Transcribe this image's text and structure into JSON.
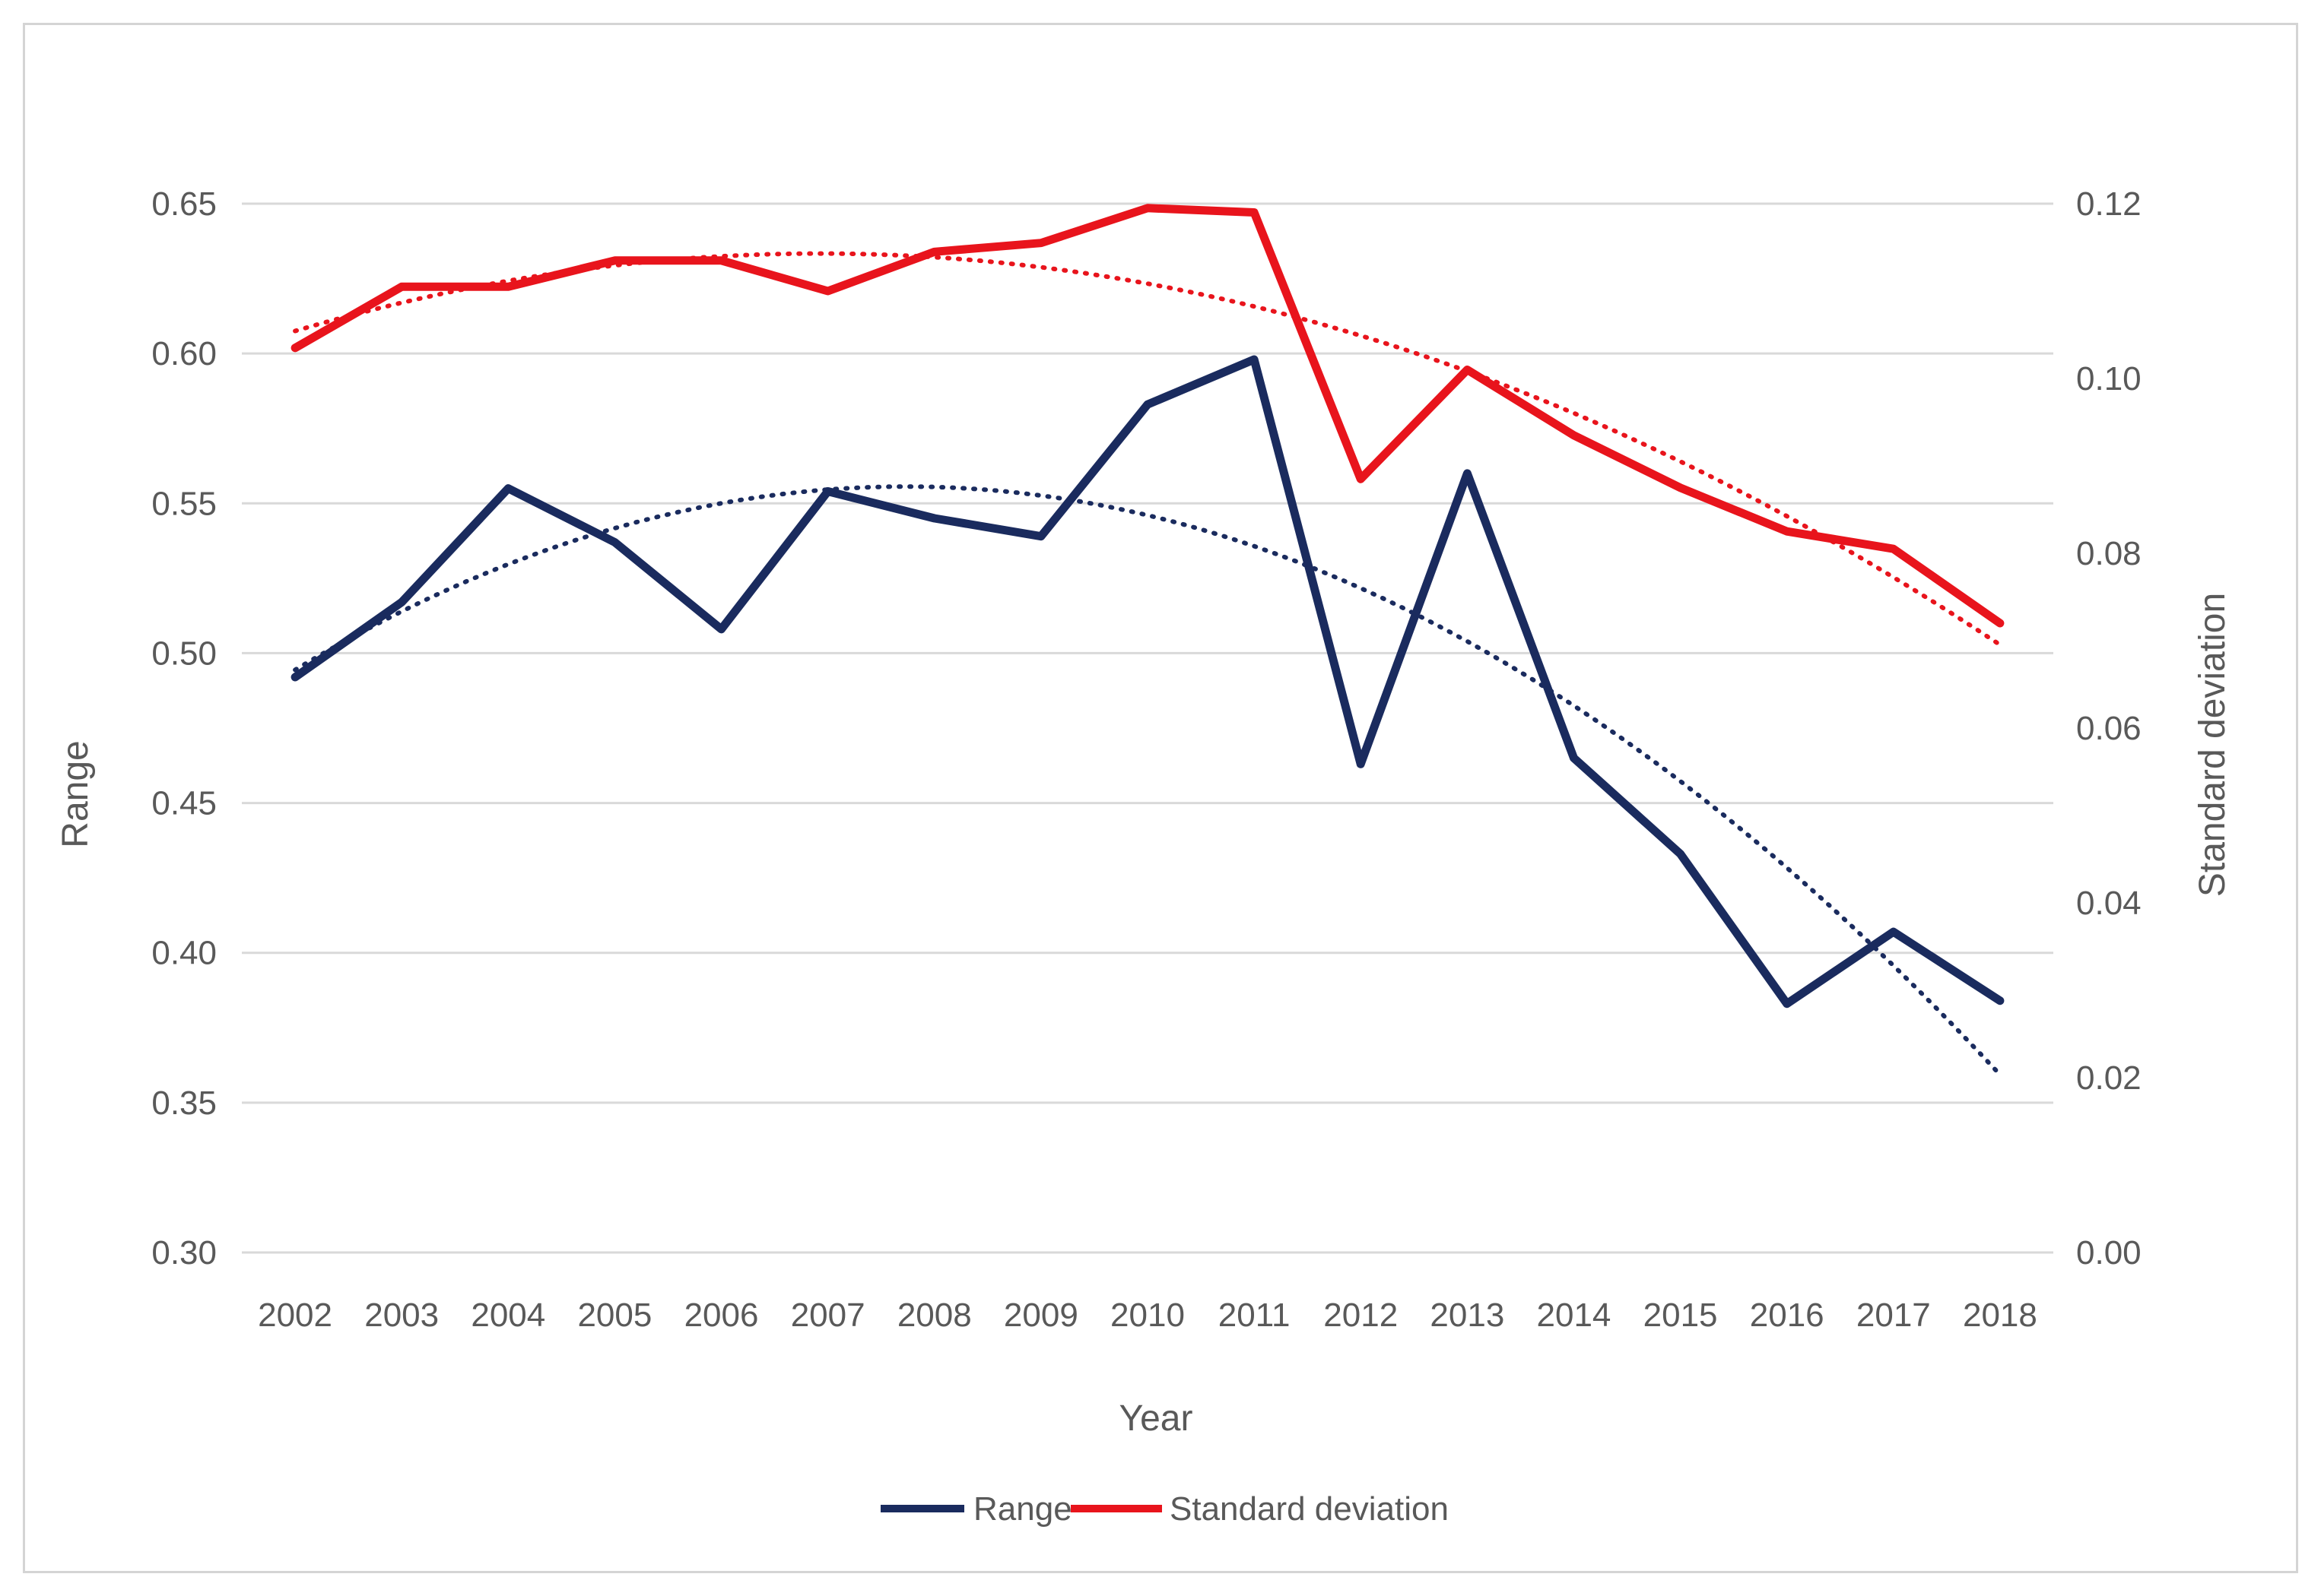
{
  "chart_data": {
    "type": "line",
    "x": [
      2002,
      2003,
      2004,
      2005,
      2006,
      2007,
      2008,
      2009,
      2010,
      2011,
      2012,
      2013,
      2014,
      2015,
      2016,
      2017,
      2018
    ],
    "xlabel": "Year",
    "ylabel": "Range",
    "y2label": "Standard deviation",
    "ylim": [
      0.3,
      0.65
    ],
    "y2lim": [
      0.0,
      0.12
    ],
    "yticks": [
      "0.30",
      "0.35",
      "0.40",
      "0.45",
      "0.50",
      "0.55",
      "0.60",
      "0.65"
    ],
    "y2ticks": [
      "0.00",
      "0.02",
      "0.04",
      "0.06",
      "0.08",
      "0.10",
      "0.12"
    ],
    "grid": true,
    "legend": "bottom-center",
    "series": [
      {
        "name": "Range",
        "axis": "left",
        "color": "#1a2b5e",
        "values": [
          0.492,
          0.517,
          0.555,
          0.537,
          0.508,
          0.554,
          0.545,
          0.539,
          0.583,
          0.598,
          0.463,
          0.56,
          0.465,
          0.433,
          0.383,
          0.407,
          0.384
        ],
        "trendline": "polynomial-2 (dotted)"
      },
      {
        "name": "Standard deviation",
        "axis": "right",
        "color": "#e8141c",
        "values": [
          0.1035,
          0.1105,
          0.1105,
          0.1135,
          0.1135,
          0.11,
          0.1145,
          0.1155,
          0.1195,
          0.119,
          0.0885,
          0.101,
          0.0935,
          0.0875,
          0.0825,
          0.0805,
          0.072
        ],
        "trendline": "polynomial-2 (dotted)"
      }
    ]
  }
}
